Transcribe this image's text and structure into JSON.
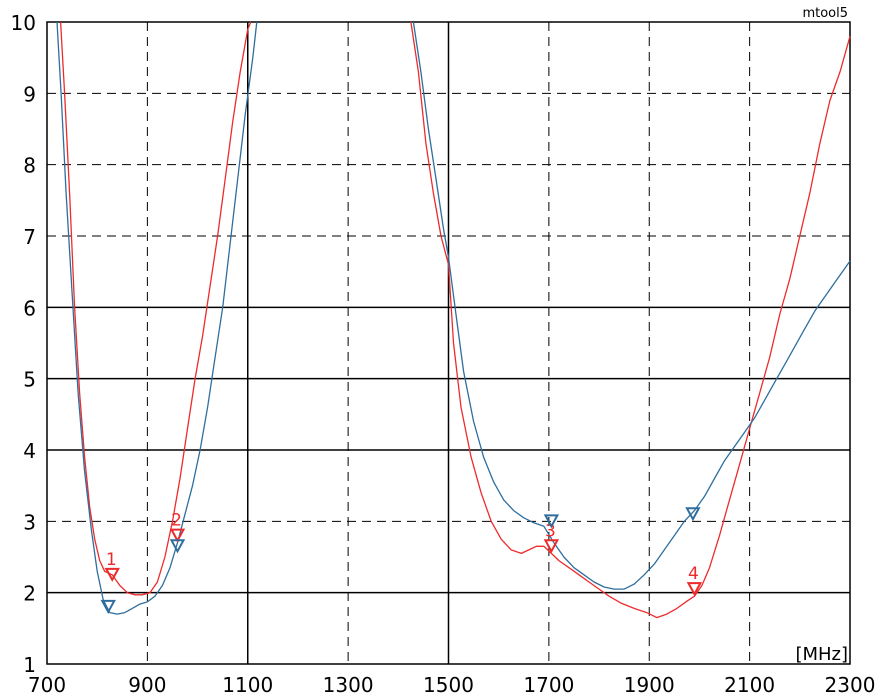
{
  "corner_label": "mtool5",
  "chart_data": {
    "type": "line",
    "title": "",
    "xlabel": "",
    "ylabel": "",
    "x_unit": "[MHz]",
    "xlim": [
      700,
      2300
    ],
    "ylim": [
      1,
      10
    ],
    "x_ticks": [
      700,
      900,
      1100,
      1300,
      1500,
      1700,
      1900,
      2100,
      2300
    ],
    "y_ticks": [
      1,
      2,
      3,
      4,
      5,
      6,
      7,
      8,
      9,
      10
    ],
    "grid": true,
    "series": [
      {
        "color": "#ee2b2b",
        "band1": [
          [
            727,
            10
          ],
          [
            735,
            9
          ],
          [
            745,
            7.6
          ],
          [
            755,
            6
          ],
          [
            765,
            4.8
          ],
          [
            775,
            3.9
          ],
          [
            785,
            3.2
          ],
          [
            795,
            2.75
          ],
          [
            805,
            2.45
          ],
          [
            815,
            2.3
          ],
          [
            830,
            2.25
          ],
          [
            845,
            2.1
          ],
          [
            860,
            2.0
          ],
          [
            875,
            1.97
          ],
          [
            890,
            1.97
          ],
          [
            905,
            2.0
          ],
          [
            920,
            2.15
          ],
          [
            935,
            2.5
          ],
          [
            950,
            3.0
          ],
          [
            965,
            3.6
          ],
          [
            980,
            4.3
          ],
          [
            995,
            5.0
          ],
          [
            1010,
            5.6
          ],
          [
            1025,
            6.3
          ],
          [
            1040,
            7.0
          ],
          [
            1055,
            7.8
          ],
          [
            1070,
            8.6
          ],
          [
            1085,
            9.3
          ],
          [
            1100,
            9.9
          ],
          [
            1106,
            10
          ]
        ],
        "band2": [
          [
            1425,
            10
          ],
          [
            1440,
            9.3
          ],
          [
            1455,
            8.3
          ],
          [
            1470,
            7.6
          ],
          [
            1485,
            7.0
          ],
          [
            1500,
            6.6
          ],
          [
            1510,
            5.5
          ],
          [
            1525,
            4.6
          ],
          [
            1545,
            3.9
          ],
          [
            1565,
            3.4
          ],
          [
            1585,
            3.0
          ],
          [
            1605,
            2.75
          ],
          [
            1625,
            2.6
          ],
          [
            1645,
            2.55
          ],
          [
            1660,
            2.6
          ],
          [
            1675,
            2.65
          ],
          [
            1690,
            2.65
          ],
          [
            1705,
            2.55
          ],
          [
            1720,
            2.45
          ],
          [
            1740,
            2.35
          ],
          [
            1760,
            2.25
          ],
          [
            1780,
            2.15
          ],
          [
            1800,
            2.05
          ],
          [
            1820,
            1.95
          ],
          [
            1845,
            1.85
          ],
          [
            1870,
            1.78
          ],
          [
            1895,
            1.72
          ],
          [
            1915,
            1.65
          ],
          [
            1935,
            1.7
          ],
          [
            1955,
            1.78
          ],
          [
            1975,
            1.88
          ],
          [
            1990,
            1.95
          ],
          [
            2005,
            2.1
          ],
          [
            2020,
            2.35
          ],
          [
            2040,
            2.8
          ],
          [
            2060,
            3.3
          ],
          [
            2080,
            3.8
          ],
          [
            2100,
            4.3
          ],
          [
            2120,
            4.8
          ],
          [
            2140,
            5.3
          ],
          [
            2160,
            5.9
          ],
          [
            2180,
            6.4
          ],
          [
            2200,
            7.0
          ],
          [
            2220,
            7.6
          ],
          [
            2240,
            8.3
          ],
          [
            2260,
            8.9
          ],
          [
            2280,
            9.3
          ],
          [
            2300,
            9.8
          ]
        ]
      },
      {
        "color": "#2e6e9e",
        "band1": [
          [
            720,
            10
          ],
          [
            728,
            9
          ],
          [
            738,
            7.6
          ],
          [
            750,
            6.2
          ],
          [
            762,
            4.8
          ],
          [
            775,
            3.7
          ],
          [
            788,
            2.9
          ],
          [
            800,
            2.3
          ],
          [
            812,
            1.9
          ],
          [
            825,
            1.72
          ],
          [
            840,
            1.7
          ],
          [
            855,
            1.72
          ],
          [
            870,
            1.78
          ],
          [
            885,
            1.84
          ],
          [
            900,
            1.87
          ],
          [
            915,
            1.95
          ],
          [
            930,
            2.1
          ],
          [
            945,
            2.35
          ],
          [
            960,
            2.7
          ],
          [
            975,
            3.1
          ],
          [
            990,
            3.5
          ],
          [
            1005,
            4.0
          ],
          [
            1020,
            4.6
          ],
          [
            1035,
            5.3
          ],
          [
            1050,
            6.0
          ],
          [
            1065,
            6.9
          ],
          [
            1080,
            7.8
          ],
          [
            1095,
            8.7
          ],
          [
            1110,
            9.5
          ],
          [
            1118,
            10
          ]
        ],
        "band2": [
          [
            1430,
            10
          ],
          [
            1445,
            9.3
          ],
          [
            1460,
            8.5
          ],
          [
            1475,
            7.8
          ],
          [
            1490,
            7.1
          ],
          [
            1500,
            6.7
          ],
          [
            1515,
            5.9
          ],
          [
            1530,
            5.1
          ],
          [
            1550,
            4.4
          ],
          [
            1570,
            3.9
          ],
          [
            1590,
            3.55
          ],
          [
            1610,
            3.3
          ],
          [
            1630,
            3.15
          ],
          [
            1650,
            3.05
          ],
          [
            1670,
            2.98
          ],
          [
            1690,
            2.93
          ],
          [
            1710,
            2.7
          ],
          [
            1730,
            2.5
          ],
          [
            1750,
            2.35
          ],
          [
            1770,
            2.25
          ],
          [
            1790,
            2.15
          ],
          [
            1810,
            2.08
          ],
          [
            1830,
            2.05
          ],
          [
            1850,
            2.05
          ],
          [
            1870,
            2.12
          ],
          [
            1890,
            2.25
          ],
          [
            1910,
            2.4
          ],
          [
            1930,
            2.6
          ],
          [
            1950,
            2.8
          ],
          [
            1970,
            3.0
          ],
          [
            1990,
            3.15
          ],
          [
            2010,
            3.35
          ],
          [
            2030,
            3.6
          ],
          [
            2050,
            3.85
          ],
          [
            2070,
            4.05
          ],
          [
            2090,
            4.25
          ],
          [
            2110,
            4.45
          ],
          [
            2130,
            4.7
          ],
          [
            2150,
            4.95
          ],
          [
            2170,
            5.2
          ],
          [
            2190,
            5.45
          ],
          [
            2210,
            5.7
          ],
          [
            2230,
            5.95
          ],
          [
            2250,
            6.15
          ],
          [
            2270,
            6.35
          ],
          [
            2290,
            6.55
          ],
          [
            2300,
            6.65
          ]
        ]
      }
    ],
    "markers": [
      {
        "label": "1",
        "x": 830,
        "y": 2.25,
        "color": "#ee2b2b"
      },
      {
        "label": "2",
        "x": 960,
        "y": 2.8,
        "color": "#ee2b2b"
      },
      {
        "label": "3",
        "x": 1705,
        "y": 2.65,
        "color": "#ee2b2b"
      },
      {
        "label": "4",
        "x": 1990,
        "y": 2.05,
        "color": "#ee2b2b"
      },
      {
        "label": "",
        "x": 822,
        "y": 1.8,
        "color": "#2e6e9e"
      },
      {
        "label": "",
        "x": 960,
        "y": 2.65,
        "color": "#2e6e9e"
      },
      {
        "label": "",
        "x": 1705,
        "y": 3.0,
        "color": "#2e6e9e"
      },
      {
        "label": "",
        "x": 1987,
        "y": 3.1,
        "color": "#2e6e9e"
      }
    ]
  }
}
